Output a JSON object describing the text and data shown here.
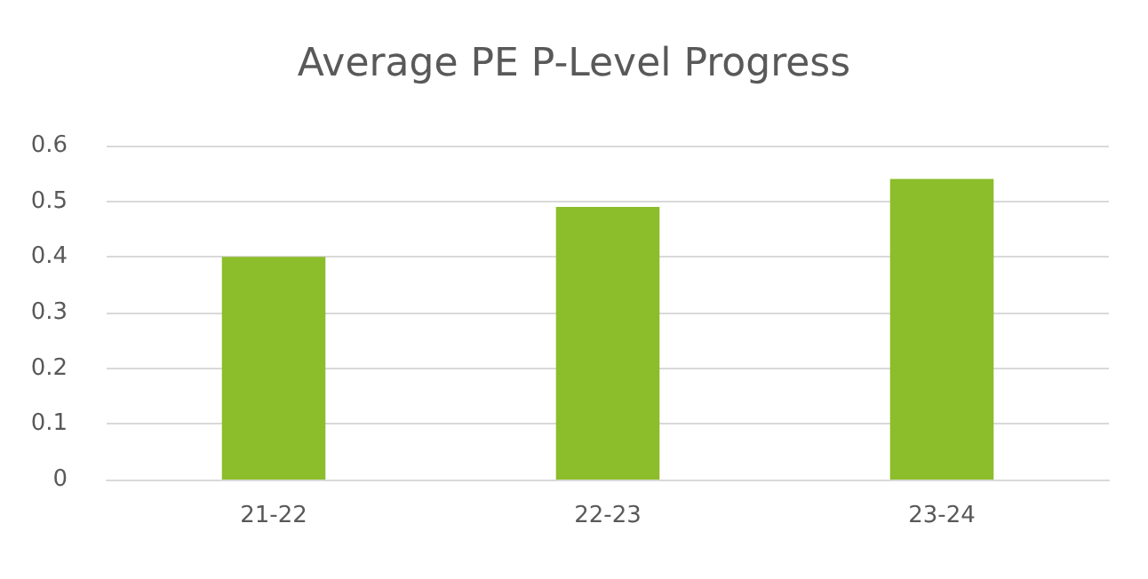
{
  "chart_data": {
    "type": "bar",
    "title": "Average PE P-Level Progress",
    "categories": [
      "21-22",
      "22-23",
      "23-24"
    ],
    "values": [
      0.4,
      0.49,
      0.54
    ],
    "color": "#8cbd2a",
    "ylim": [
      0,
      0.6
    ],
    "yticks": [
      0,
      0.1,
      0.2,
      0.3,
      0.4,
      0.5,
      0.6
    ],
    "grid": "y"
  }
}
